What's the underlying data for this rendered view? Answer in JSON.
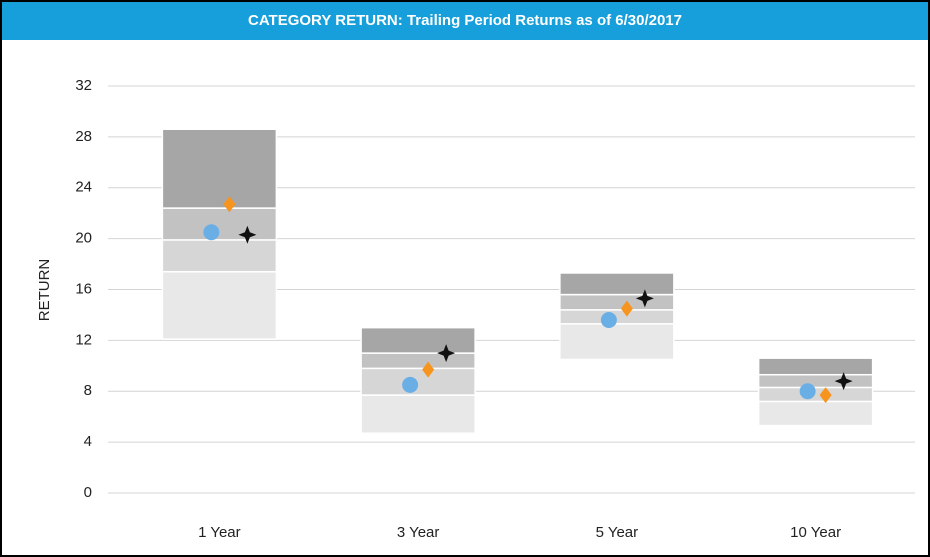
{
  "chart_data": {
    "type": "bar",
    "stacked": true,
    "title": "CATEGORY RETURN: Trailing Period Returns as of 6/30/2017",
    "ylabel": "RETURN",
    "categories": [
      "1 Year",
      "3 Year",
      "5 Year",
      "10 Year"
    ],
    "series": [
      {
        "color": "none",
        "values": [
          12.1,
          4.7,
          10.5,
          5.3
        ]
      },
      {
        "color": "#e8e8e8",
        "values": [
          5.3,
          3.0,
          2.8,
          1.9
        ]
      },
      {
        "color": "#d6d6d6",
        "values": [
          2.5,
          2.1,
          1.1,
          1.1
        ]
      },
      {
        "color": "#c2c2c2",
        "values": [
          2.5,
          1.2,
          1.2,
          1.0
        ]
      },
      {
        "color": "#a6a6a6",
        "values": [
          6.2,
          2.0,
          1.7,
          1.3
        ]
      }
    ],
    "markers": [
      {
        "shape": "circle",
        "color": "#6aaee6",
        "values": [
          20.5,
          8.5,
          13.6,
          8.0
        ]
      },
      {
        "shape": "diamond",
        "color": "#f7941d",
        "values": [
          22.7,
          9.7,
          14.5,
          7.7
        ]
      },
      {
        "shape": "star",
        "color": "#111111",
        "values": [
          20.3,
          11.0,
          15.3,
          8.8
        ]
      }
    ],
    "ylim": [
      0,
      32
    ],
    "yticks": [
      0,
      4,
      8,
      12,
      16,
      20,
      24,
      28,
      32
    ],
    "grid": true
  }
}
